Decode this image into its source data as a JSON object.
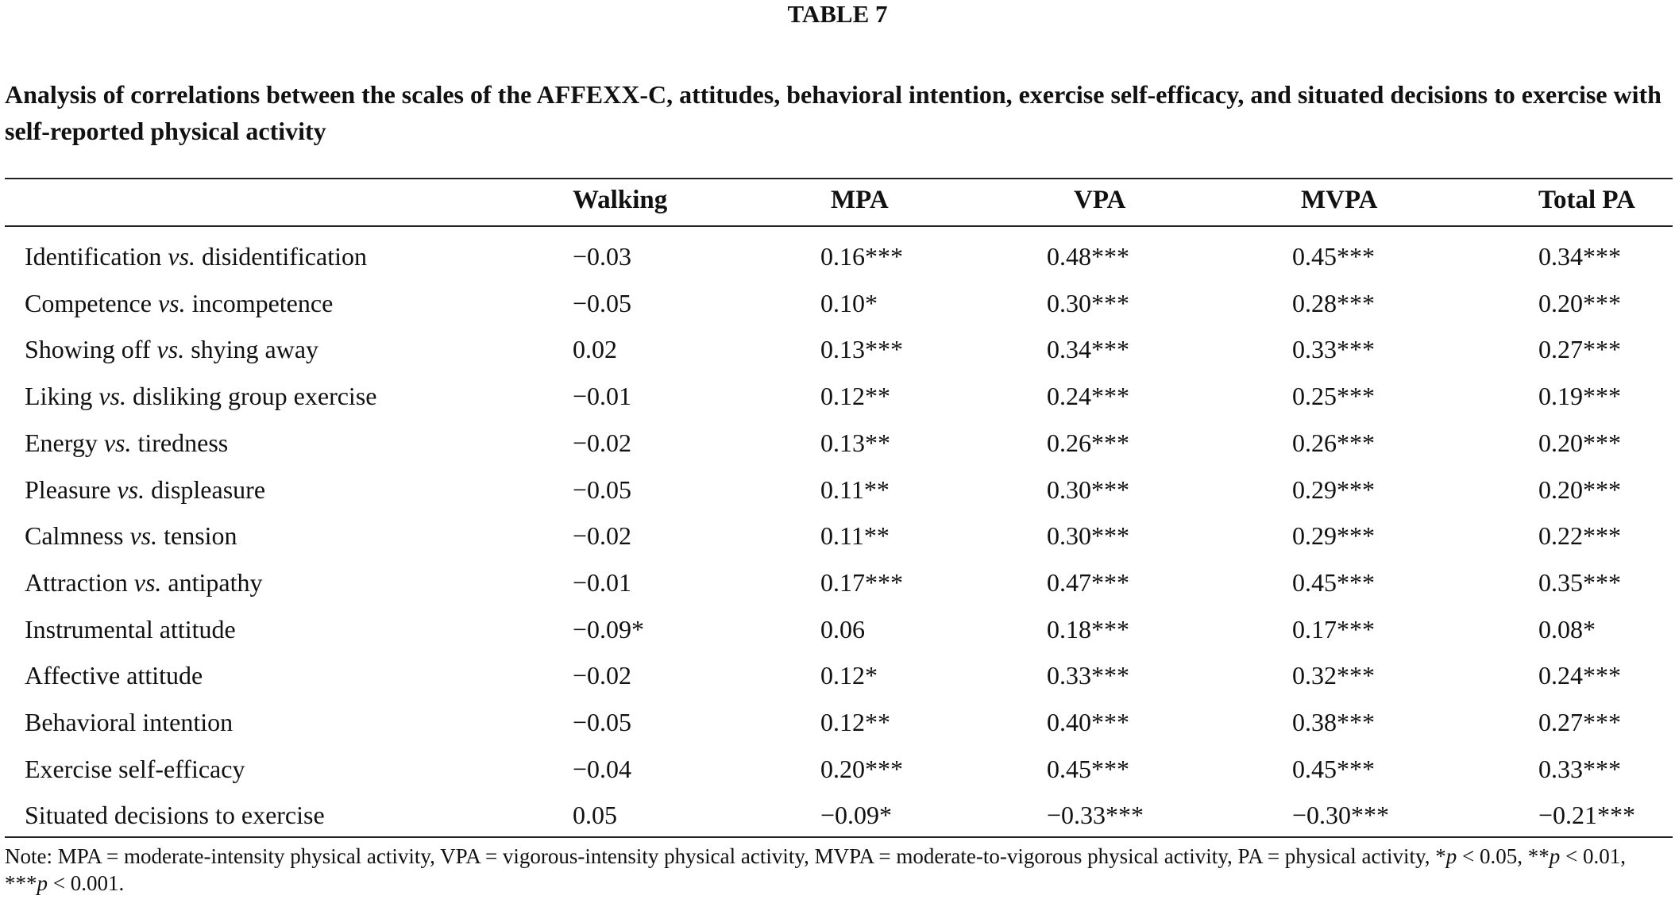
{
  "header": {
    "label": "TABLE 7",
    "caption": "Analysis of correlations between the scales of the AFFEXX-C, attitudes, behavioral intention, exercise self-efficacy, and situated decisions to exercise with self-reported physical activity"
  },
  "table": {
    "columns": [
      "Walking",
      "MPA",
      "VPA",
      "MVPA",
      "Total PA"
    ],
    "rows": [
      {
        "label": [
          "Identification ",
          "vs.",
          " disidentification"
        ],
        "cells": [
          "−0.03",
          "0.16***",
          "0.48***",
          "0.45***",
          "0.34***"
        ]
      },
      {
        "label": [
          "Competence ",
          "vs.",
          " incompetence"
        ],
        "cells": [
          "−0.05",
          "0.10*",
          "0.30***",
          "0.28***",
          "0.20***"
        ]
      },
      {
        "label": [
          "Showing off ",
          "vs.",
          " shying away"
        ],
        "cells": [
          "0.02",
          "0.13***",
          "0.34***",
          "0.33***",
          "0.27***"
        ]
      },
      {
        "label": [
          "Liking ",
          "vs.",
          " disliking group exercise"
        ],
        "cells": [
          "−0.01",
          "0.12**",
          "0.24***",
          "0.25***",
          "0.19***"
        ]
      },
      {
        "label": [
          "Energy ",
          "vs.",
          " tiredness"
        ],
        "cells": [
          "−0.02",
          "0.13**",
          "0.26***",
          "0.26***",
          "0.20***"
        ]
      },
      {
        "label": [
          "Pleasure ",
          "vs.",
          " displeasure"
        ],
        "cells": [
          "−0.05",
          "0.11**",
          "0.30***",
          "0.29***",
          "0.20***"
        ]
      },
      {
        "label": [
          "Calmness ",
          "vs.",
          " tension"
        ],
        "cells": [
          "−0.02",
          "0.11**",
          "0.30***",
          "0.29***",
          "0.22***"
        ]
      },
      {
        "label": [
          "Attraction ",
          "vs.",
          " antipathy"
        ],
        "cells": [
          "−0.01",
          "0.17***",
          "0.47***",
          "0.45***",
          "0.35***"
        ]
      },
      {
        "label": [
          "Instrumental attitude"
        ],
        "cells": [
          "−0.09*",
          "0.06",
          "0.18***",
          "0.17***",
          "0.08*"
        ]
      },
      {
        "label": [
          "Affective attitude"
        ],
        "cells": [
          "−0.02",
          "0.12*",
          "0.33***",
          "0.32***",
          "0.24***"
        ]
      },
      {
        "label": [
          "Behavioral intention"
        ],
        "cells": [
          "−0.05",
          "0.12**",
          "0.40***",
          "0.38***",
          "0.27***"
        ]
      },
      {
        "label": [
          "Exercise self-efficacy"
        ],
        "cells": [
          "−0.04",
          "0.20***",
          "0.45***",
          "0.45***",
          "0.33***"
        ]
      },
      {
        "label": [
          "Situated decisions to exercise"
        ],
        "cells": [
          "0.05",
          "−0.09*",
          "−0.33***",
          "−0.30***",
          "−0.21***"
        ]
      }
    ]
  },
  "note": [
    "Note: MPA = moderate-intensity physical activity, VPA = vigorous-intensity physical activity, MVPA = moderate-to-vigorous physical activity, PA = physical activity, *",
    "p",
    " < 0.05, **",
    "p",
    " < 0.01, ***",
    "p",
    " < 0.001."
  ]
}
